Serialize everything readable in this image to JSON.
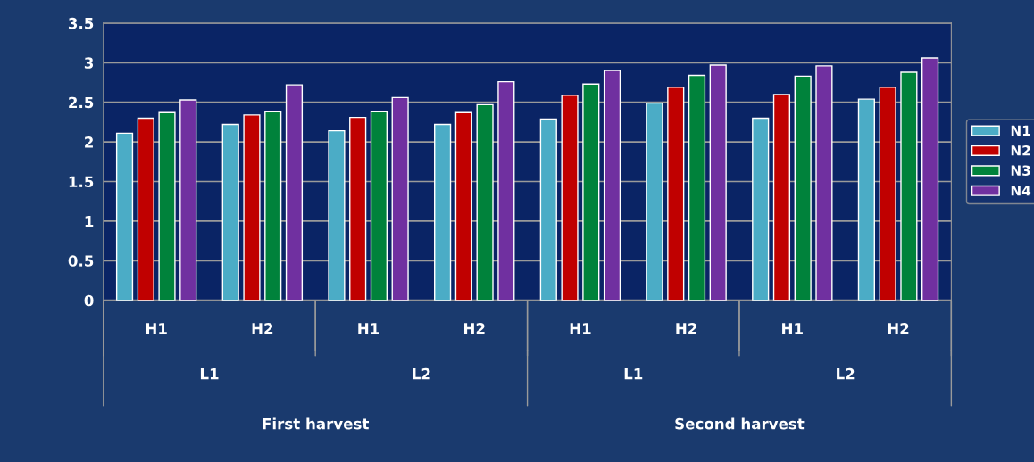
{
  "chart_data": {
    "type": "bar",
    "categories": [
      "H1",
      "H2",
      "H1",
      "H2",
      "H1",
      "H2",
      "H1",
      "H2"
    ],
    "series": [
      {
        "name": "N1",
        "color": "#4bacc6",
        "values": [
          2.11,
          2.22,
          2.14,
          2.22,
          2.29,
          2.49,
          2.3,
          2.54
        ]
      },
      {
        "name": "N2",
        "color": "#c00000",
        "values": [
          2.3,
          2.34,
          2.31,
          2.37,
          2.59,
          2.69,
          2.6,
          2.69
        ]
      },
      {
        "name": "N3",
        "color": "#00823b",
        "values": [
          2.37,
          2.38,
          2.38,
          2.47,
          2.73,
          2.84,
          2.83,
          2.88
        ]
      },
      {
        "name": "N4",
        "color": "#7030a0",
        "values": [
          2.53,
          2.72,
          2.56,
          2.76,
          2.9,
          2.97,
          2.96,
          3.06
        ]
      }
    ],
    "annotations": [
      "L1",
      "L2",
      "L1",
      "L2",
      "First harvest",
      "Second harvest"
    ],
    "ylim": [
      0,
      3.5
    ],
    "yticks": [
      0,
      0.5,
      1,
      1.5,
      2,
      2.5,
      3,
      3.5
    ],
    "grid": "y",
    "legend": "right"
  }
}
